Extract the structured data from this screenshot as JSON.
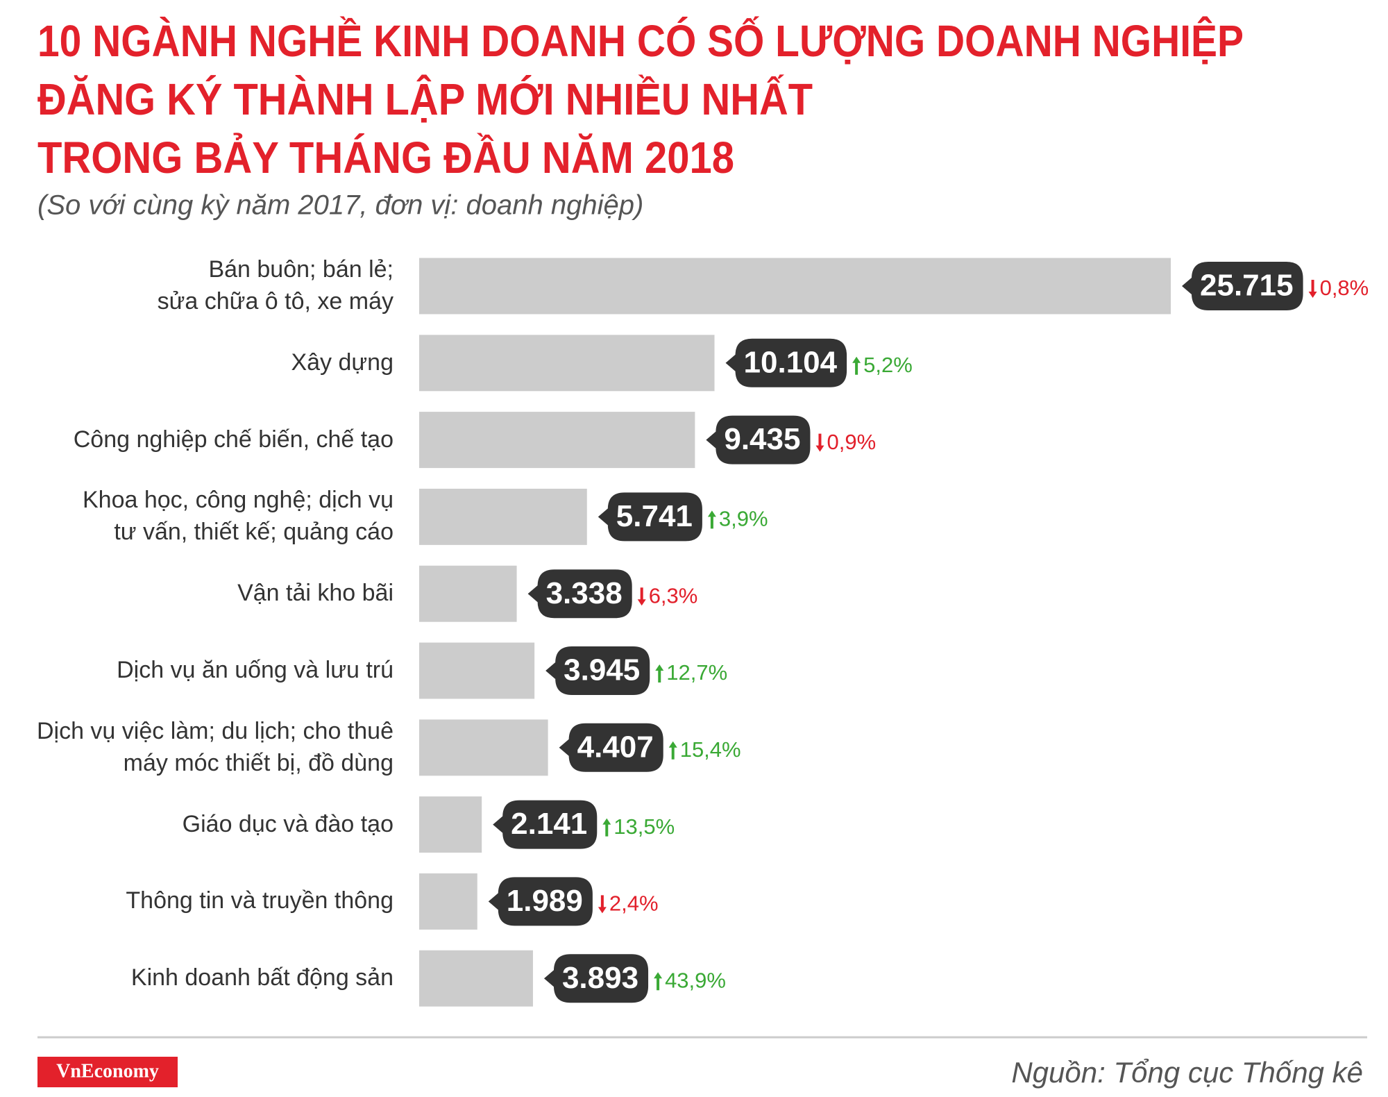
{
  "chart_data": {
    "type": "bar",
    "title": [
      "10 NGÀNH NGHỀ KINH DOANH CÓ SỐ LƯỢNG DOANH NGHIỆP",
      "ĐĂNG KÝ THÀNH LẬP MỚI NHIỀU NHẤT",
      "TRONG BẢY THÁNG ĐẦU NĂM 2018"
    ],
    "subtitle": "(So với cùng kỳ năm 2017, đơn vị: doanh nghiệp)",
    "categories": [
      "Bán buôn; bán lẻ;\nsửa chữa ô tô, xe máy",
      "Xây dựng",
      "Công nghiệp chế biến, chế tạo",
      "Khoa học, công nghệ; dịch vụ\ntư vấn, thiết kế; quảng cáo",
      "Vận tải kho bãi",
      "Dịch vụ ăn uống và lưu trú",
      "Dịch vụ việc làm; du lịch; cho thuê\nmáy móc thiết bị, đồ dùng",
      "Giáo dục và đào tạo",
      "Thông tin và truyền thông",
      "Kinh doanh bất động sản"
    ],
    "values": [
      25715,
      10104,
      9435,
      5741,
      3338,
      3945,
      4407,
      2141,
      1989,
      3893
    ],
    "value_labels": [
      "25.715",
      "10.104",
      "9.435",
      "5.741",
      "3.338",
      "3.945",
      "4.407",
      "2.141",
      "1.989",
      "3.893"
    ],
    "changes": [
      -0.8,
      5.2,
      -0.9,
      3.9,
      -6.3,
      12.7,
      15.4,
      13.5,
      -2.4,
      43.9
    ],
    "change_labels": [
      "0,8%",
      "5,2%",
      "0,9%",
      "3,9%",
      "6,3%",
      "12,7%",
      "15,4%",
      "13,5%",
      "2,4%",
      "43,9%"
    ],
    "color": "#cccccc",
    "label_color": "#333333",
    "up_color": "#3aa935",
    "down_color": "#e2202b",
    "title_color": "#e3212b",
    "brand": "VnEconomy",
    "source": "Nguồn: Tổng cục Thống kê"
  }
}
